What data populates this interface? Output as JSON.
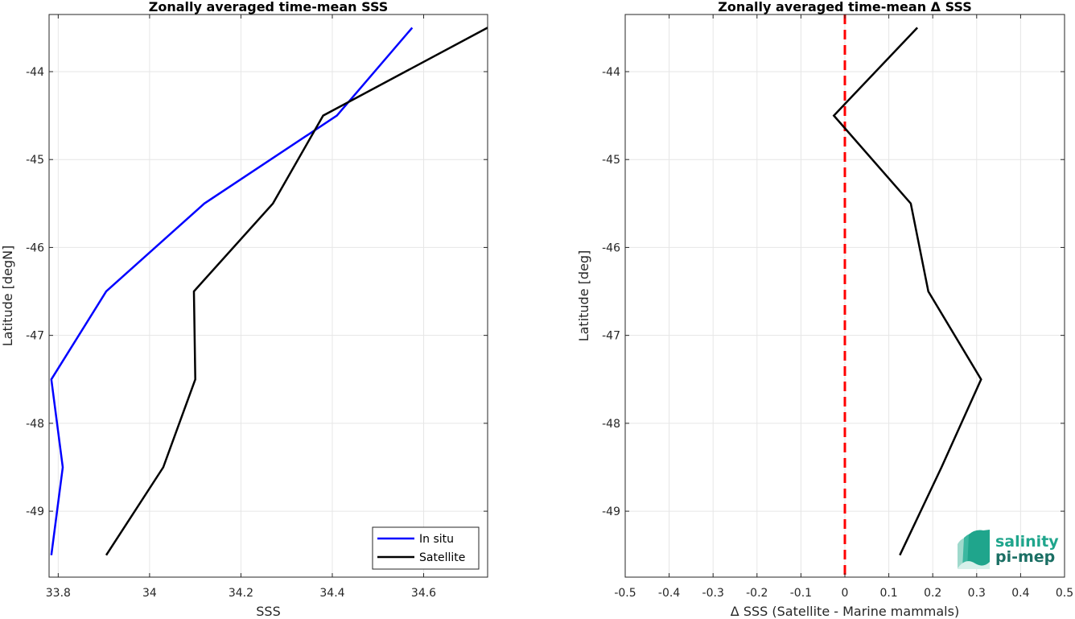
{
  "chart_data": [
    {
      "type": "line",
      "title": "Zonally averaged time-mean SSS",
      "xlabel": "SSS",
      "ylabel": "Latitude [degN]",
      "xlim": [
        33.78,
        34.74
      ],
      "ylim": [
        -49.75,
        -43.35
      ],
      "xticks": [
        33.8,
        34,
        34.2,
        34.4,
        34.6
      ],
      "xtick_labels": [
        "33.8",
        "34",
        "34.2",
        "34.4",
        "34.6"
      ],
      "yticks": [
        -44,
        -45,
        -46,
        -47,
        -48,
        -49
      ],
      "ytick_labels": [
        "-44",
        "-45",
        "-46",
        "-47",
        "-48",
        "-49"
      ],
      "grid": true,
      "legend_position": "bottom-right",
      "series": [
        {
          "name": "In situ",
          "color": "#0000ff",
          "x": [
            34.575,
            34.41,
            34.12,
            33.905,
            33.785,
            33.81,
            33.785
          ],
          "y": [
            -43.5,
            -44.5,
            -45.5,
            -46.5,
            -47.5,
            -48.5,
            -49.5
          ]
        },
        {
          "name": "Satellite",
          "color": "#000000",
          "x": [
            34.74,
            34.38,
            34.27,
            34.097,
            34.1,
            34.03,
            33.905
          ],
          "y": [
            -43.5,
            -44.5,
            -45.5,
            -46.5,
            -47.5,
            -48.5,
            -49.5
          ]
        }
      ]
    },
    {
      "type": "line",
      "title": "Zonally averaged time-mean Δ SSS",
      "xlabel": "Δ SSS (Satellite - Marine mammals)",
      "ylabel": "Latitude [deg]",
      "xlim": [
        -0.5,
        0.5
      ],
      "ylim": [
        -49.75,
        -43.35
      ],
      "xticks": [
        -0.5,
        -0.4,
        -0.3,
        -0.2,
        -0.1,
        0,
        0.1,
        0.2,
        0.3,
        0.4,
        0.5
      ],
      "xtick_labels": [
        "-0.5",
        "-0.4",
        "-0.3",
        "-0.2",
        "-0.1",
        "0",
        "0.1",
        "0.2",
        "0.3",
        "0.4",
        "0.5"
      ],
      "yticks": [
        -44,
        -45,
        -46,
        -47,
        -48,
        -49
      ],
      "ytick_labels": [
        "-44",
        "-45",
        "-46",
        "-47",
        "-48",
        "-49"
      ],
      "grid": true,
      "reference_line": {
        "x": 0,
        "color": "#ff0000",
        "style": "dashed"
      },
      "series": [
        {
          "color": "#000000",
          "x": [
            0.165,
            -0.025,
            0.15,
            0.19,
            0.31,
            0.22,
            0.125
          ],
          "y": [
            -43.5,
            -44.5,
            -45.5,
            -46.5,
            -47.5,
            -48.5,
            -49.5
          ]
        }
      ]
    }
  ],
  "logo": {
    "line1": "salinity",
    "line2": "pi-mep"
  }
}
